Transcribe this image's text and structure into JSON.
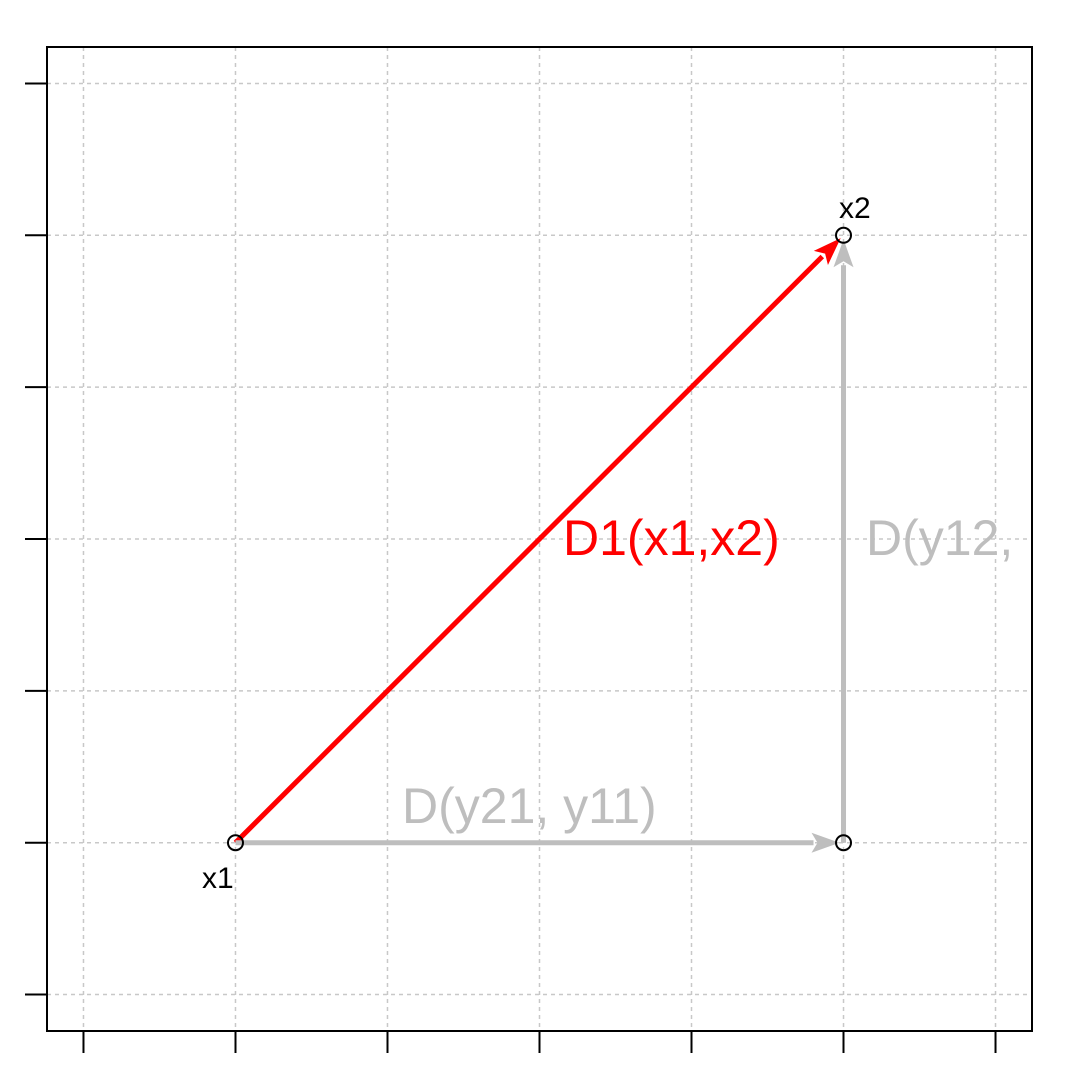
{
  "diagram": {
    "grid": true,
    "x_ticks": [
      1,
      2,
      3,
      4,
      5,
      6,
      7
    ],
    "y_ticks": [
      1,
      2,
      3,
      4,
      5,
      6,
      7
    ],
    "xlim": [
      0.76,
      7.24
    ],
    "ylim": [
      0.76,
      7.24
    ],
    "points": [
      {
        "id": "x1",
        "label": "x1",
        "x": 2,
        "y": 2,
        "label_pos": "below-left"
      },
      {
        "id": "x2",
        "label": "x2",
        "x": 6,
        "y": 6,
        "label_pos": "above"
      },
      {
        "id": "corner",
        "label": "",
        "x": 6,
        "y": 2,
        "label_pos": "none"
      }
    ],
    "arrows": [
      {
        "id": "d1",
        "from": "x1",
        "to": "x2",
        "color": "#ff0000",
        "label": "D1(x1,x2)"
      },
      {
        "id": "dy21",
        "from": "x1",
        "to": "corner",
        "color": "#bebebe",
        "label": "D(y21, y11)"
      },
      {
        "id": "dy12",
        "from": "corner",
        "to": "x2",
        "color": "#bebebe",
        "label": "D(y12,"
      }
    ]
  }
}
